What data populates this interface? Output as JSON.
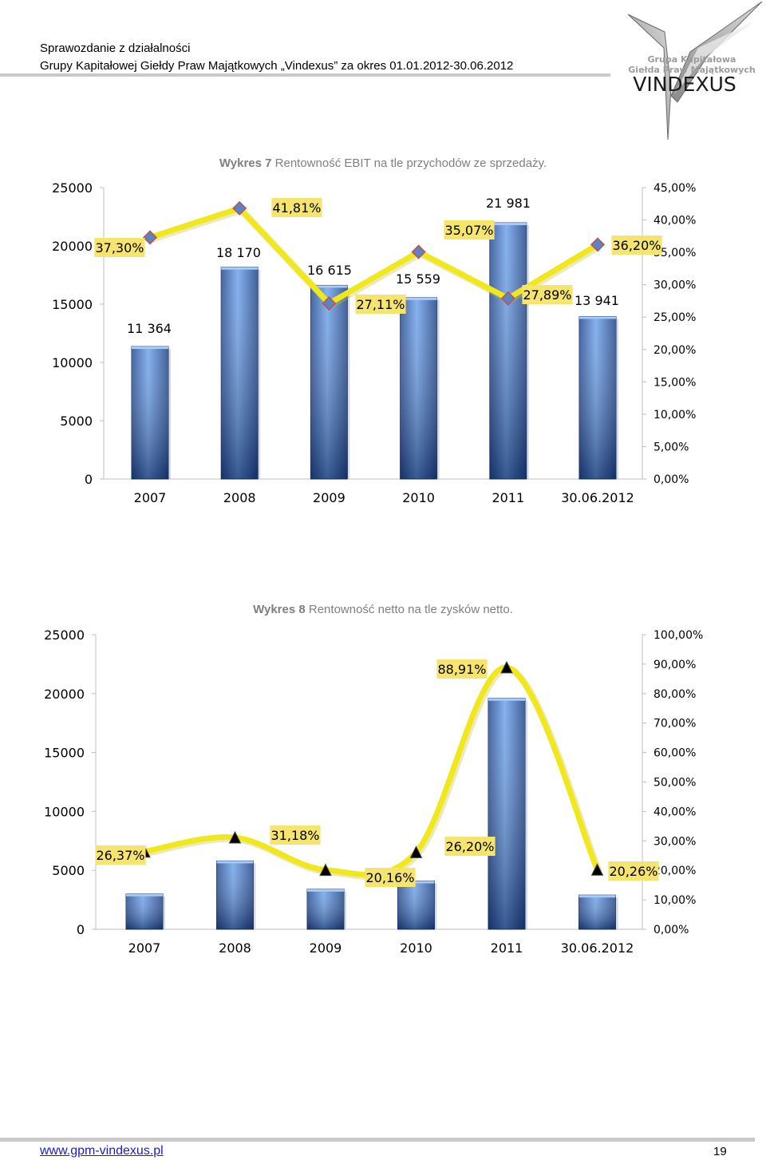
{
  "header": {
    "line1": "Sprawozdanie z działalności",
    "line2": "Grupy Kapitałowej Giełdy Praw Majątkowych „Vindexus” za okres 01.01.2012-30.06.2012",
    "logo_line1": "Grupa Kapitałowa",
    "logo_line2": "Giełda Praw Majątkowych",
    "logo_name": "VINDEXUS"
  },
  "captions": [
    {
      "num": "Wykres 7",
      "text": " Rentowność EBIT na tle przychodów ze sprzedaży."
    },
    {
      "num": "Wykres 8",
      "text": " Rentowność netto na tle zysków netto."
    }
  ],
  "footer": {
    "url": "www.gpm-vindexus.pl",
    "page": "19"
  },
  "colors": {
    "bar_top": "#7ab0f0",
    "bar_bottom": "#1c3d80",
    "line": "#f0e81c",
    "label_bg": "#f5e46e",
    "marker1": "#5b84c4",
    "marker1_edge": "#c0504d",
    "marker2": "#000000"
  },
  "chart_data": [
    {
      "type": "bar",
      "categories": [
        "2007",
        "2008",
        "2009",
        "2010",
        "2011",
        "30.06.2012"
      ],
      "series": [
        {
          "values": [
            11364,
            18170,
            16615,
            15559,
            21981,
            13941
          ],
          "axis": "left"
        },
        {
          "values": [
            37.3,
            41.81,
            27.11,
            35.07,
            27.89,
            36.2
          ],
          "axis": "right",
          "render": "line",
          "marker": "diamond"
        }
      ],
      "bar_labels": [
        "11 364",
        "18 170",
        "16 615",
        "15 559",
        "21 981",
        "13 941"
      ],
      "line_labels": [
        "37,30%",
        "41,81%",
        "27,11%",
        "35,07%",
        "27,89%",
        "36,20%"
      ],
      "y_left": {
        "min": 0,
        "max": 25000,
        "ticks": [
          "0",
          "5000",
          "10000",
          "15000",
          "20000",
          "25000"
        ]
      },
      "y_right": {
        "min": 0,
        "max": 45,
        "ticks": [
          "0,00%",
          "5,00%",
          "10,00%",
          "15,00%",
          "20,00%",
          "25,00%",
          "30,00%",
          "35,00%",
          "40,00%",
          "45,00%"
        ]
      }
    },
    {
      "type": "bar",
      "categories": [
        "2007",
        "2008",
        "2009",
        "2010",
        "2011",
        "30.06.2012"
      ],
      "series": [
        {
          "values": [
            3000,
            5800,
            3400,
            4100,
            19600,
            2900
          ],
          "axis": "left"
        },
        {
          "values": [
            26.37,
            31.18,
            20.16,
            26.2,
            88.91,
            20.26
          ],
          "axis": "right",
          "render": "line",
          "marker": "triangle"
        }
      ],
      "bar_labels": [],
      "line_labels": [
        "26,37%",
        "31,18%",
        "20,16%",
        "26,20%",
        "88,91%",
        "20,26%"
      ],
      "y_left": {
        "min": 0,
        "max": 25000,
        "ticks": [
          "0",
          "5000",
          "10000",
          "15000",
          "20000",
          "25000"
        ]
      },
      "y_right": {
        "min": 0,
        "max": 100,
        "ticks": [
          "0,00%",
          "10,00%",
          "20,00%",
          "30,00%",
          "40,00%",
          "50,00%",
          "60,00%",
          "70,00%",
          "80,00%",
          "90,00%",
          "100,00%"
        ]
      }
    }
  ]
}
